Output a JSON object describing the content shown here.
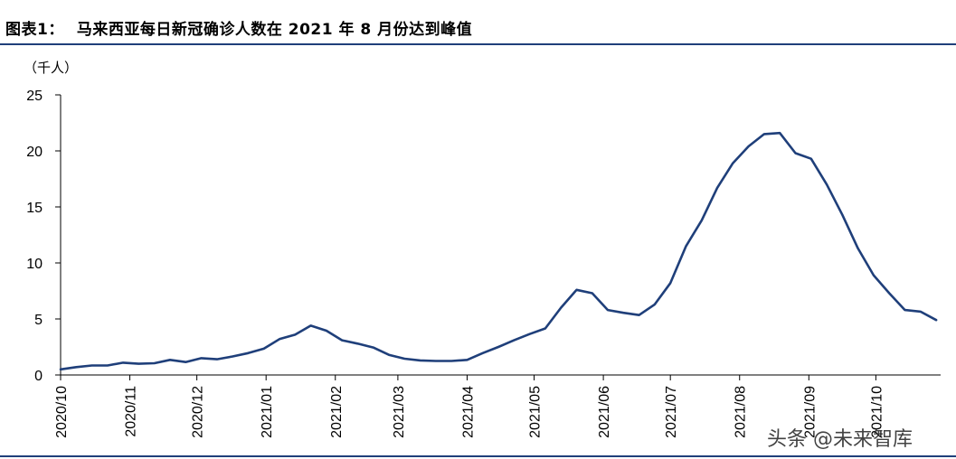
{
  "figure": {
    "label": "图表1：",
    "title": "马来西亚每日新冠确诊人数在 2021 年 8 月份达到峰值",
    "unit": "（千人）",
    "watermark": "头条 @未来智库"
  },
  "colors": {
    "line": "#1f3f7a",
    "rule": "#1f3f7a",
    "axis": "#000000"
  },
  "chart_data": {
    "type": "line",
    "title": "",
    "xlabel": "",
    "ylabel": "（千人）",
    "ylim": [
      0,
      25
    ],
    "yticks": [
      0,
      5,
      10,
      15,
      20,
      25
    ],
    "grid": false,
    "x_ticks": [
      "2020/10",
      "2020/11",
      "2020/12",
      "2021/01",
      "2021/02",
      "2021/03",
      "2021/04",
      "2021/05",
      "2021/06",
      "2021/07",
      "2021/08",
      "2021/09",
      "2021/10"
    ],
    "x_tick_dates": [
      "2020-10-01",
      "2020-11-01",
      "2020-12-01",
      "2021-01-01",
      "2021-02-01",
      "2021-03-01",
      "2021-04-01",
      "2021-05-01",
      "2021-06-01",
      "2021-07-01",
      "2021-08-01",
      "2021-09-01",
      "2021-10-01"
    ],
    "xlim": [
      "2020-10-01",
      "2021-10-30"
    ],
    "series": [
      {
        "values": [
          [
            "2020-10-01",
            0.5
          ],
          [
            "2020-10-08",
            0.7
          ],
          [
            "2020-10-15",
            0.85
          ],
          [
            "2020-10-22",
            0.85
          ],
          [
            "2020-10-29",
            1.1
          ],
          [
            "2020-11-05",
            1.0
          ],
          [
            "2020-11-12",
            1.05
          ],
          [
            "2020-11-19",
            1.35
          ],
          [
            "2020-11-26",
            1.15
          ],
          [
            "2020-12-03",
            1.5
          ],
          [
            "2020-12-10",
            1.4
          ],
          [
            "2020-12-17",
            1.65
          ],
          [
            "2020-12-24",
            1.95
          ],
          [
            "2020-12-31",
            2.35
          ],
          [
            "2021-01-07",
            3.2
          ],
          [
            "2021-01-14",
            3.6
          ],
          [
            "2021-01-21",
            4.4
          ],
          [
            "2021-01-28",
            3.95
          ],
          [
            "2021-02-04",
            3.1
          ],
          [
            "2021-02-11",
            2.8
          ],
          [
            "2021-02-18",
            2.45
          ],
          [
            "2021-02-25",
            1.8
          ],
          [
            "2021-03-04",
            1.45
          ],
          [
            "2021-03-11",
            1.3
          ],
          [
            "2021-03-18",
            1.25
          ],
          [
            "2021-03-25",
            1.25
          ],
          [
            "2021-04-01",
            1.35
          ],
          [
            "2021-04-08",
            1.95
          ],
          [
            "2021-04-15",
            2.5
          ],
          [
            "2021-04-22",
            3.1
          ],
          [
            "2021-04-29",
            3.65
          ],
          [
            "2021-05-06",
            4.15
          ],
          [
            "2021-05-13",
            6.0
          ],
          [
            "2021-05-20",
            7.6
          ],
          [
            "2021-05-27",
            7.3
          ],
          [
            "2021-06-03",
            5.8
          ],
          [
            "2021-06-10",
            5.55
          ],
          [
            "2021-06-17",
            5.35
          ],
          [
            "2021-06-24",
            6.3
          ],
          [
            "2021-07-01",
            8.2
          ],
          [
            "2021-07-08",
            11.5
          ],
          [
            "2021-07-15",
            13.8
          ],
          [
            "2021-07-22",
            16.7
          ],
          [
            "2021-07-29",
            18.9
          ],
          [
            "2021-08-05",
            20.4
          ],
          [
            "2021-08-12",
            21.5
          ],
          [
            "2021-08-19",
            21.6
          ],
          [
            "2021-08-26",
            19.8
          ],
          [
            "2021-09-02",
            19.3
          ],
          [
            "2021-09-09",
            17.0
          ],
          [
            "2021-09-16",
            14.3
          ],
          [
            "2021-09-23",
            11.3
          ],
          [
            "2021-09-30",
            8.9
          ],
          [
            "2021-10-07",
            7.3
          ],
          [
            "2021-10-14",
            5.8
          ],
          [
            "2021-10-21",
            5.65
          ],
          [
            "2021-10-28",
            4.9
          ]
        ]
      }
    ]
  }
}
